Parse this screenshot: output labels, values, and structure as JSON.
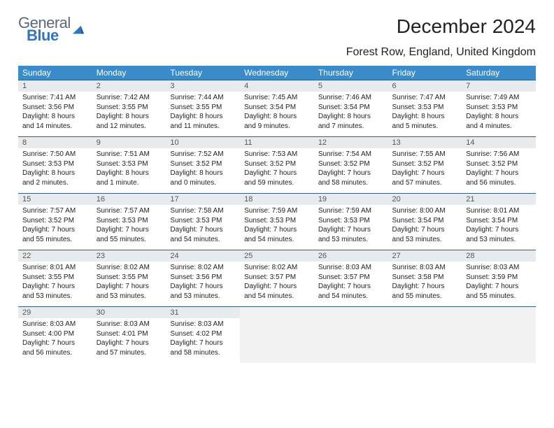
{
  "logo": {
    "text1": "General",
    "text2": "Blue"
  },
  "title": "December 2024",
  "subtitle": "Forest Row, England, United Kingdom",
  "colors": {
    "header_bg": "#3a8bc9",
    "header_text": "#ffffff",
    "numrow_bg": "#e7ebee",
    "numrow_border": "#2e5f8a",
    "empty_bg": "#f2f2f2",
    "logo_gray": "#5a6a78",
    "logo_blue": "#2e75c2"
  },
  "day_headers": [
    "Sunday",
    "Monday",
    "Tuesday",
    "Wednesday",
    "Thursday",
    "Friday",
    "Saturday"
  ],
  "weeks": [
    {
      "nums": [
        "1",
        "2",
        "3",
        "4",
        "5",
        "6",
        "7"
      ],
      "cells": [
        {
          "sunrise": "Sunrise: 7:41 AM",
          "sunset": "Sunset: 3:56 PM",
          "d1": "Daylight: 8 hours",
          "d2": "and 14 minutes."
        },
        {
          "sunrise": "Sunrise: 7:42 AM",
          "sunset": "Sunset: 3:55 PM",
          "d1": "Daylight: 8 hours",
          "d2": "and 12 minutes."
        },
        {
          "sunrise": "Sunrise: 7:44 AM",
          "sunset": "Sunset: 3:55 PM",
          "d1": "Daylight: 8 hours",
          "d2": "and 11 minutes."
        },
        {
          "sunrise": "Sunrise: 7:45 AM",
          "sunset": "Sunset: 3:54 PM",
          "d1": "Daylight: 8 hours",
          "d2": "and 9 minutes."
        },
        {
          "sunrise": "Sunrise: 7:46 AM",
          "sunset": "Sunset: 3:54 PM",
          "d1": "Daylight: 8 hours",
          "d2": "and 7 minutes."
        },
        {
          "sunrise": "Sunrise: 7:47 AM",
          "sunset": "Sunset: 3:53 PM",
          "d1": "Daylight: 8 hours",
          "d2": "and 5 minutes."
        },
        {
          "sunrise": "Sunrise: 7:49 AM",
          "sunset": "Sunset: 3:53 PM",
          "d1": "Daylight: 8 hours",
          "d2": "and 4 minutes."
        }
      ]
    },
    {
      "nums": [
        "8",
        "9",
        "10",
        "11",
        "12",
        "13",
        "14"
      ],
      "cells": [
        {
          "sunrise": "Sunrise: 7:50 AM",
          "sunset": "Sunset: 3:53 PM",
          "d1": "Daylight: 8 hours",
          "d2": "and 2 minutes."
        },
        {
          "sunrise": "Sunrise: 7:51 AM",
          "sunset": "Sunset: 3:53 PM",
          "d1": "Daylight: 8 hours",
          "d2": "and 1 minute."
        },
        {
          "sunrise": "Sunrise: 7:52 AM",
          "sunset": "Sunset: 3:52 PM",
          "d1": "Daylight: 8 hours",
          "d2": "and 0 minutes."
        },
        {
          "sunrise": "Sunrise: 7:53 AM",
          "sunset": "Sunset: 3:52 PM",
          "d1": "Daylight: 7 hours",
          "d2": "and 59 minutes."
        },
        {
          "sunrise": "Sunrise: 7:54 AM",
          "sunset": "Sunset: 3:52 PM",
          "d1": "Daylight: 7 hours",
          "d2": "and 58 minutes."
        },
        {
          "sunrise": "Sunrise: 7:55 AM",
          "sunset": "Sunset: 3:52 PM",
          "d1": "Daylight: 7 hours",
          "d2": "and 57 minutes."
        },
        {
          "sunrise": "Sunrise: 7:56 AM",
          "sunset": "Sunset: 3:52 PM",
          "d1": "Daylight: 7 hours",
          "d2": "and 56 minutes."
        }
      ]
    },
    {
      "nums": [
        "15",
        "16",
        "17",
        "18",
        "19",
        "20",
        "21"
      ],
      "cells": [
        {
          "sunrise": "Sunrise: 7:57 AM",
          "sunset": "Sunset: 3:52 PM",
          "d1": "Daylight: 7 hours",
          "d2": "and 55 minutes."
        },
        {
          "sunrise": "Sunrise: 7:57 AM",
          "sunset": "Sunset: 3:53 PM",
          "d1": "Daylight: 7 hours",
          "d2": "and 55 minutes."
        },
        {
          "sunrise": "Sunrise: 7:58 AM",
          "sunset": "Sunset: 3:53 PM",
          "d1": "Daylight: 7 hours",
          "d2": "and 54 minutes."
        },
        {
          "sunrise": "Sunrise: 7:59 AM",
          "sunset": "Sunset: 3:53 PM",
          "d1": "Daylight: 7 hours",
          "d2": "and 54 minutes."
        },
        {
          "sunrise": "Sunrise: 7:59 AM",
          "sunset": "Sunset: 3:53 PM",
          "d1": "Daylight: 7 hours",
          "d2": "and 53 minutes."
        },
        {
          "sunrise": "Sunrise: 8:00 AM",
          "sunset": "Sunset: 3:54 PM",
          "d1": "Daylight: 7 hours",
          "d2": "and 53 minutes."
        },
        {
          "sunrise": "Sunrise: 8:01 AM",
          "sunset": "Sunset: 3:54 PM",
          "d1": "Daylight: 7 hours",
          "d2": "and 53 minutes."
        }
      ]
    },
    {
      "nums": [
        "22",
        "23",
        "24",
        "25",
        "26",
        "27",
        "28"
      ],
      "cells": [
        {
          "sunrise": "Sunrise: 8:01 AM",
          "sunset": "Sunset: 3:55 PM",
          "d1": "Daylight: 7 hours",
          "d2": "and 53 minutes."
        },
        {
          "sunrise": "Sunrise: 8:02 AM",
          "sunset": "Sunset: 3:55 PM",
          "d1": "Daylight: 7 hours",
          "d2": "and 53 minutes."
        },
        {
          "sunrise": "Sunrise: 8:02 AM",
          "sunset": "Sunset: 3:56 PM",
          "d1": "Daylight: 7 hours",
          "d2": "and 53 minutes."
        },
        {
          "sunrise": "Sunrise: 8:02 AM",
          "sunset": "Sunset: 3:57 PM",
          "d1": "Daylight: 7 hours",
          "d2": "and 54 minutes."
        },
        {
          "sunrise": "Sunrise: 8:03 AM",
          "sunset": "Sunset: 3:57 PM",
          "d1": "Daylight: 7 hours",
          "d2": "and 54 minutes."
        },
        {
          "sunrise": "Sunrise: 8:03 AM",
          "sunset": "Sunset: 3:58 PM",
          "d1": "Daylight: 7 hours",
          "d2": "and 55 minutes."
        },
        {
          "sunrise": "Sunrise: 8:03 AM",
          "sunset": "Sunset: 3:59 PM",
          "d1": "Daylight: 7 hours",
          "d2": "and 55 minutes."
        }
      ]
    },
    {
      "nums": [
        "29",
        "30",
        "31",
        "",
        "",
        "",
        ""
      ],
      "cells": [
        {
          "sunrise": "Sunrise: 8:03 AM",
          "sunset": "Sunset: 4:00 PM",
          "d1": "Daylight: 7 hours",
          "d2": "and 56 minutes."
        },
        {
          "sunrise": "Sunrise: 8:03 AM",
          "sunset": "Sunset: 4:01 PM",
          "d1": "Daylight: 7 hours",
          "d2": "and 57 minutes."
        },
        {
          "sunrise": "Sunrise: 8:03 AM",
          "sunset": "Sunset: 4:02 PM",
          "d1": "Daylight: 7 hours",
          "d2": "and 58 minutes."
        },
        null,
        null,
        null,
        null
      ]
    }
  ]
}
